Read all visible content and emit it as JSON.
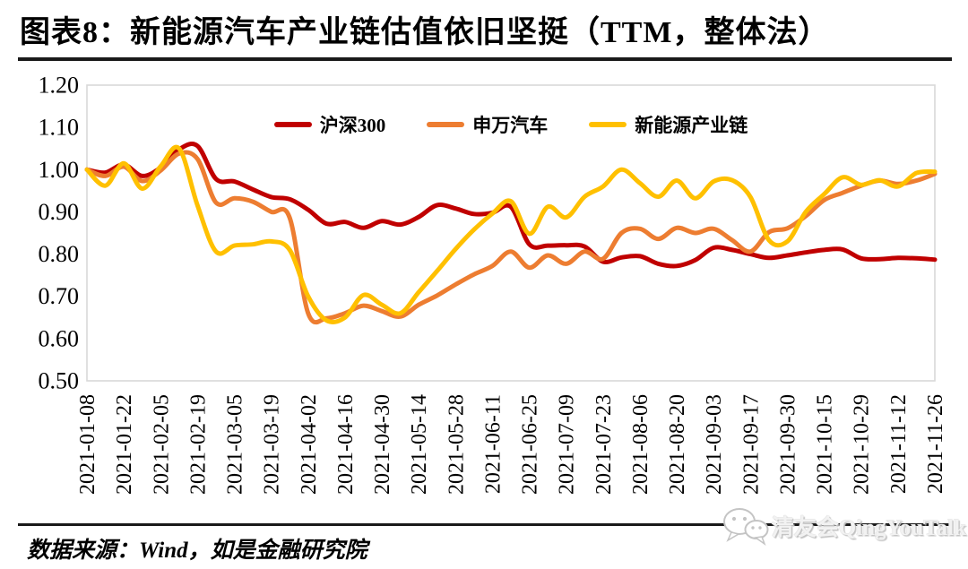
{
  "title": "图表8：新能源汽车产业链估值依旧坚挺（TTM，整体法）",
  "footer": {
    "source": "数据来源：Wind，如是金融研究院",
    "watermark": "清友会QingYouTalk"
  },
  "chart_data": {
    "type": "line",
    "title": "图表8：新能源汽车产业链估值依旧坚挺（TTM，整体法）",
    "xlabel": "",
    "ylabel": "",
    "ylim": [
      0.5,
      1.2
    ],
    "y_tick_labels": [
      "1.20",
      "1.10",
      "1.00",
      "0.90",
      "0.80",
      "0.70",
      "0.60",
      "0.50"
    ],
    "y_tick_values": [
      1.2,
      1.1,
      1.0,
      0.9,
      0.8,
      0.7,
      0.6,
      0.5
    ],
    "grid": false,
    "legend_position": "top-center-inside",
    "points_per_tick": 2,
    "x_tick_labels": [
      "2021-01-08",
      "2021-01-22",
      "2021-02-05",
      "2021-02-19",
      "2021-03-05",
      "2021-03-19",
      "2021-04-02",
      "2021-04-16",
      "2021-04-30",
      "2021-05-14",
      "2021-05-28",
      "2021-06-11",
      "2021-06-25",
      "2021-07-09",
      "2021-07-23",
      "2021-08-06",
      "2021-08-20",
      "2021-09-03",
      "2021-09-17",
      "2021-09-30",
      "2021-10-15",
      "2021-10-29",
      "2021-11-12",
      "2021-11-26"
    ],
    "series": [
      {
        "name": "沪深300",
        "color": "#C00000",
        "values": [
          1.0,
          0.993,
          1.012,
          0.985,
          1.005,
          1.048,
          1.056,
          0.978,
          0.972,
          0.953,
          0.935,
          0.93,
          0.905,
          0.872,
          0.876,
          0.862,
          0.878,
          0.87,
          0.888,
          0.916,
          0.908,
          0.895,
          0.898,
          0.912,
          0.823,
          0.82,
          0.821,
          0.818,
          0.782,
          0.792,
          0.795,
          0.777,
          0.772,
          0.786,
          0.815,
          0.81,
          0.8,
          0.791,
          0.797,
          0.804,
          0.81,
          0.811,
          0.79,
          0.788,
          0.791,
          0.79,
          0.787
        ]
      },
      {
        "name": "申万汽车",
        "color": "#ED7D31",
        "values": [
          1.0,
          0.985,
          1.007,
          0.973,
          0.998,
          1.038,
          1.025,
          0.922,
          0.932,
          0.924,
          0.9,
          0.886,
          0.66,
          0.648,
          0.66,
          0.678,
          0.665,
          0.652,
          0.68,
          0.702,
          0.728,
          0.752,
          0.772,
          0.806,
          0.768,
          0.797,
          0.777,
          0.806,
          0.789,
          0.85,
          0.86,
          0.836,
          0.862,
          0.85,
          0.86,
          0.833,
          0.806,
          0.852,
          0.861,
          0.89,
          0.928,
          0.945,
          0.962,
          0.974,
          0.966,
          0.974,
          0.99
        ]
      },
      {
        "name": "新能源产业链",
        "color": "#FFC000",
        "values": [
          1.0,
          0.962,
          1.015,
          0.955,
          1.008,
          1.05,
          0.915,
          0.806,
          0.82,
          0.823,
          0.83,
          0.81,
          0.7,
          0.643,
          0.65,
          0.703,
          0.68,
          0.66,
          0.71,
          0.76,
          0.812,
          0.858,
          0.896,
          0.925,
          0.848,
          0.912,
          0.887,
          0.936,
          0.96,
          1.0,
          0.968,
          0.936,
          0.974,
          0.932,
          0.972,
          0.975,
          0.935,
          0.833,
          0.83,
          0.9,
          0.942,
          0.982,
          0.964,
          0.975,
          0.96,
          0.992,
          0.995
        ]
      }
    ]
  }
}
